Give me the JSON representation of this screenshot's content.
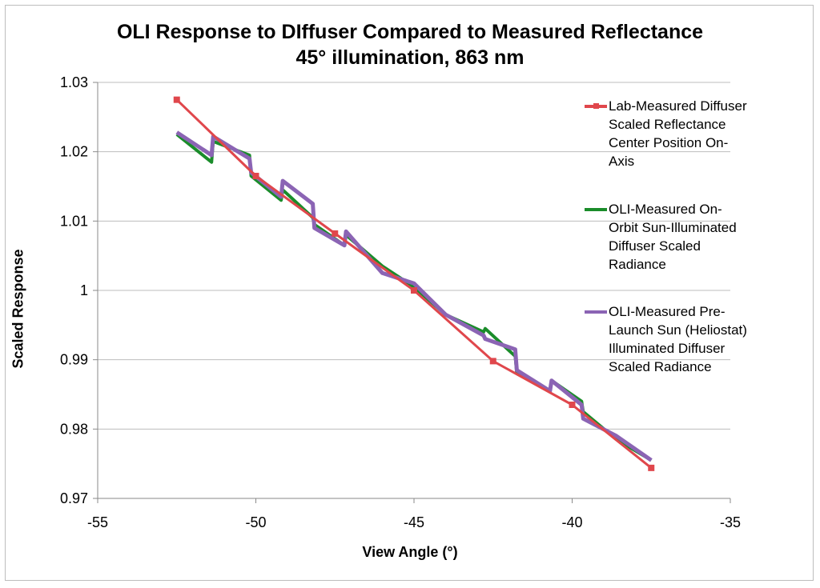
{
  "chart_data": {
    "type": "line",
    "title": "OLI Response to DIffuser Compared to Measured Reflectance",
    "subtitle": "45° illumination,  863 nm",
    "xlabel": "View Angle (°)",
    "ylabel": "Scaled Response",
    "xlim": [
      -55,
      -35
    ],
    "ylim": [
      0.97,
      1.03
    ],
    "x_ticks": [
      -55,
      -50,
      -45,
      -40,
      -35
    ],
    "x_tick_labels": [
      "-55",
      "-50",
      "-45",
      "-40",
      "-35"
    ],
    "y_ticks": [
      0.97,
      0.98,
      0.99,
      1.0,
      1.01,
      1.02,
      1.03
    ],
    "y_tick_labels": [
      "0.97",
      "0.98",
      "0.99",
      "1",
      "1.01",
      "1.02",
      "1.03"
    ],
    "grid": "horizontal",
    "legend_position": "right",
    "series": [
      {
        "name": "Lab-Measured Diffuser Scaled Reflectance Center Position On-Axis",
        "legend_text": "Lab-Measured Diffuser\nScaled Reflectance\nCenter Position On-\nAxis",
        "color": "#e0474c",
        "marker": "square",
        "x": [
          -52.5,
          -50.0,
          -47.5,
          -45.0,
          -42.5,
          -40.0,
          -37.5
        ],
        "y": [
          1.0275,
          1.0165,
          1.0082,
          1.0,
          0.9898,
          0.9835,
          0.9744
        ]
      },
      {
        "name": "OLI-Measured On-Orbit Sun-Illuminated Diffuser Scaled Radiance",
        "legend_text": "OLI-Measured On-\nOrbit  Sun-Illuminated\nDiffuser Scaled\nRadiance",
        "color": "#1a8c2a",
        "marker": "none",
        "x": [
          -52.5,
          -51.4,
          -51.35,
          -50.2,
          -50.15,
          -49.2,
          -49.15,
          -48.2,
          -48.15,
          -47.2,
          -47.15,
          -46.0,
          -45.0,
          -44.0,
          -42.8,
          -42.75,
          -41.8,
          -41.75,
          -40.7,
          -40.65,
          -39.7,
          -39.65,
          -38.6,
          -37.5
        ],
        "y": [
          1.0225,
          1.0185,
          1.0215,
          1.0195,
          1.0165,
          1.013,
          1.0145,
          1.0105,
          1.0095,
          1.0065,
          1.008,
          1.0035,
          1.0005,
          0.9965,
          0.994,
          0.9945,
          0.9905,
          0.988,
          0.9855,
          0.987,
          0.984,
          0.9825,
          0.9785,
          0.9755
        ]
      },
      {
        "name": "OLI-Measured Pre-Launch Sun (Heliostat) Illuminated Diffuser Scaled Radiance",
        "legend_text": "OLI-Measured Pre-\nLaunch  Sun (Heliostat)\nIlluminated Diffuser\nScaled Radiance",
        "color": "#8b64b4",
        "marker": "none",
        "x": [
          -52.5,
          -51.4,
          -51.35,
          -50.2,
          -50.15,
          -49.2,
          -49.15,
          -48.2,
          -48.15,
          -47.2,
          -47.15,
          -46.0,
          -45.0,
          -44.0,
          -42.8,
          -42.75,
          -41.8,
          -41.75,
          -40.7,
          -40.65,
          -39.7,
          -39.65,
          -38.6,
          -37.5
        ],
        "y": [
          1.0228,
          1.0195,
          1.0222,
          1.019,
          1.017,
          1.0135,
          1.0158,
          1.0125,
          1.009,
          1.0065,
          1.0085,
          1.0025,
          1.001,
          0.9965,
          0.9935,
          0.993,
          0.9915,
          0.9885,
          0.9855,
          0.987,
          0.9835,
          0.9815,
          0.979,
          0.9755
        ]
      }
    ]
  }
}
